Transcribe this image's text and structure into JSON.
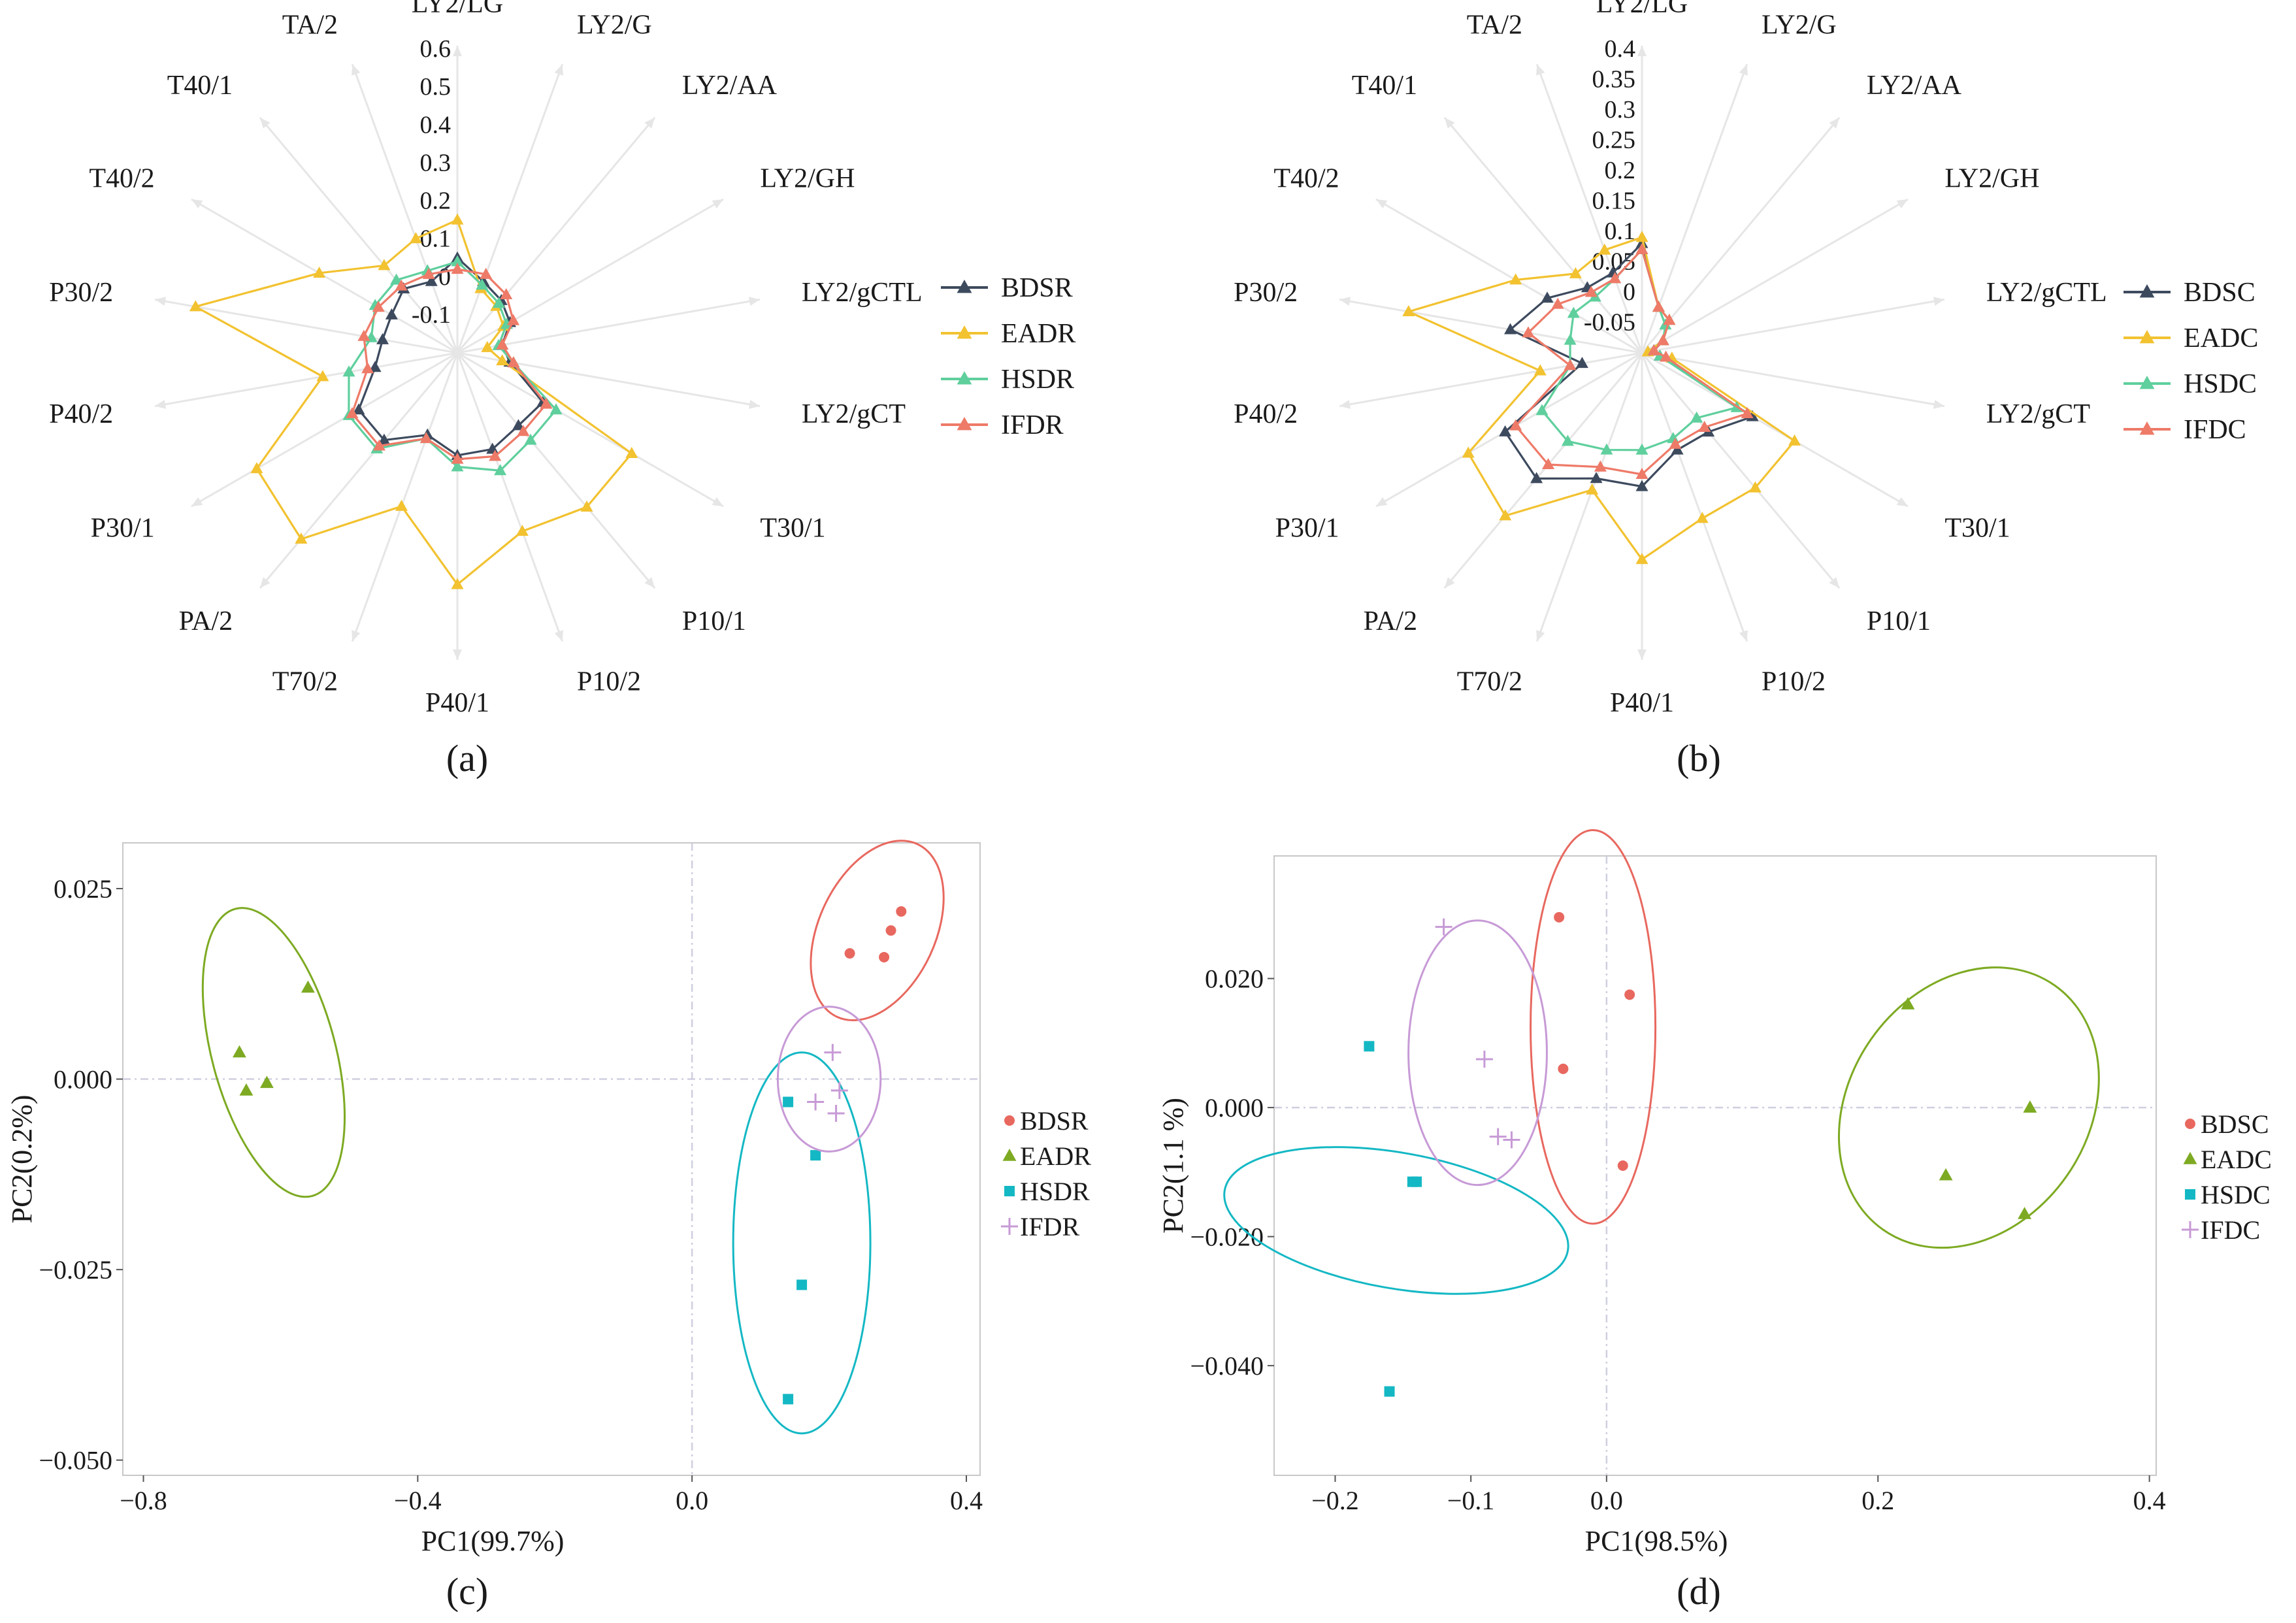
{
  "panel_labels": [
    "(a)",
    "(b)",
    "(c)",
    "(d)"
  ],
  "colors": {
    "BDS": "#3d4a5e",
    "EAD": "#f2c230",
    "HSD": "#5fcf9d",
    "IFD": "#ee7a68",
    "pca_bds": "#e8685f",
    "pca_ead": "#7daa22",
    "pca_hsd": "#14b8c4",
    "pca_ifd": "#c79ad6",
    "spoke": "#e6e6e6",
    "refline": "#cfcfe0",
    "frame": "#c8c8c8"
  },
  "chart_data": [
    {
      "type": "radar",
      "panel": "(a)",
      "axes": [
        "LY2/LG",
        "LY2/G",
        "LY2/AA",
        "LY2/GH",
        "LY2/gCTL",
        "LY2/gCT",
        "T30/1",
        "P10/1",
        "P10/2",
        "P40/1",
        "T70/2",
        "PA/2",
        "P30/1",
        "P40/2",
        "P30/2",
        "T40/2",
        "T40/1",
        "TA/2"
      ],
      "ticks": [
        "0.6",
        "0.5",
        "0.4",
        "0.3",
        "0.2",
        "0.1",
        "0",
        "-0.1"
      ],
      "tick_values": [
        0.6,
        0.5,
        0.4,
        0.3,
        0.2,
        0.1,
        0,
        -0.1
      ],
      "rmin": -0.2,
      "rmax": 0.6,
      "legend": [
        "BDSR",
        "EADR",
        "HSDR",
        "IFDR"
      ],
      "series": [
        {
          "name": "BDSR",
          "values": [
            0.05,
            0.0,
            -0.02,
            -0.04,
            -0.08,
            -0.06,
            0.06,
            0.05,
            0.07,
            0.07,
            0.03,
            0.1,
            0.1,
            0.02,
            0.0,
            0.0,
            0.02,
            0.0
          ]
        },
        {
          "name": "EADR",
          "values": [
            0.15,
            -0.02,
            -0.04,
            -0.06,
            -0.12,
            -0.08,
            0.33,
            0.33,
            0.3,
            0.41,
            0.23,
            0.44,
            0.41,
            0.16,
            0.5,
            0.22,
            0.1,
            0.12
          ]
        },
        {
          "name": "HSDR",
          "values": [
            0.04,
            -0.01,
            -0.03,
            -0.05,
            -0.09,
            -0.05,
            0.1,
            0.1,
            0.13,
            0.1,
            0.04,
            0.13,
            0.13,
            0.09,
            0.03,
            0.05,
            0.05,
            0.03
          ]
        },
        {
          "name": "IFDR",
          "values": [
            0.02,
            0.02,
            0.0,
            -0.03,
            -0.08,
            -0.05,
            0.07,
            0.07,
            0.09,
            0.08,
            0.04,
            0.12,
            0.12,
            0.04,
            0.05,
            0.04,
            0.03,
            0.02
          ]
        }
      ]
    },
    {
      "type": "radar",
      "panel": "(b)",
      "axes": [
        "LY2/LG",
        "LY2/G",
        "LY2/AA",
        "LY2/GH",
        "LY2/gCTL",
        "LY2/gCT",
        "T30/1",
        "P10/1",
        "P10/2",
        "P40/1",
        "T70/2",
        "PA/2",
        "P30/1",
        "P40/2",
        "P30/2",
        "T40/2",
        "T40/1",
        "TA/2"
      ],
      "ticks": [
        "0.4",
        "0.35",
        "0.3",
        "0.25",
        "0.2",
        "0.15",
        "0.1",
        "0.05",
        "0",
        "-0.05"
      ],
      "tick_values": [
        0.4,
        0.35,
        0.3,
        0.25,
        0.2,
        0.15,
        0.1,
        0.05,
        0,
        -0.05
      ],
      "rmin": -0.1,
      "rmax": 0.4,
      "legend": [
        "BDSC",
        "EADC",
        "HSDC",
        "IFDC"
      ],
      "series": [
        {
          "name": "BDSC",
          "values": [
            0.08,
            -0.02,
            -0.03,
            -0.06,
            -0.08,
            -0.07,
            0.11,
            0.07,
            0.07,
            0.12,
            0.12,
            0.17,
            0.16,
            0.0,
            0.12,
            0.08,
            0.04,
            0.04
          ]
        },
        {
          "name": "EADC",
          "values": [
            0.09,
            -0.02,
            -0.03,
            -0.06,
            -0.09,
            -0.05,
            0.19,
            0.19,
            0.19,
            0.24,
            0.14,
            0.25,
            0.23,
            0.07,
            0.29,
            0.14,
            0.07,
            0.08
          ]
        },
        {
          "name": "HSDC",
          "values": [
            0.07,
            -0.02,
            -0.04,
            -0.06,
            -0.08,
            -0.07,
            0.08,
            0.04,
            0.05,
            0.06,
            0.07,
            0.09,
            0.09,
            0.02,
            0.02,
            0.03,
            0.02,
            0.03
          ]
        },
        {
          "name": "IFDC",
          "values": [
            0.07,
            -0.02,
            -0.03,
            -0.06,
            -0.08,
            -0.06,
            0.1,
            0.06,
            0.06,
            0.1,
            0.1,
            0.14,
            0.14,
            0.02,
            0.09,
            0.06,
            0.03,
            0.03
          ]
        }
      ]
    },
    {
      "type": "scatter",
      "panel": "(c)",
      "xlabel": "PC1(99.7%)",
      "ylabel": "PC2(0.2%)",
      "xlim": [
        -0.83,
        0.42
      ],
      "ylim": [
        -0.052,
        0.031
      ],
      "xticks": [
        -0.8,
        -0.4,
        0.0,
        0.4
      ],
      "xtick_labels": [
        "−0.8",
        "−0.4",
        "0.0",
        "0.4"
      ],
      "yticks": [
        0.025,
        0.0,
        -0.025,
        -0.05
      ],
      "ytick_labels": [
        "0.025",
        "0.000",
        "−0.025",
        "−0.050"
      ],
      "series": [
        {
          "name": "BDSR",
          "marker": "circle",
          "points": [
            [
              0.23,
              0.0165
            ],
            [
              0.28,
              0.016
            ],
            [
              0.29,
              0.0195
            ],
            [
              0.305,
              0.022
            ]
          ],
          "ellipse": {
            "cx": 0.27,
            "cy": 0.0195,
            "rx": 0.085,
            "ry": 0.0125,
            "angle_deg": 25
          }
        },
        {
          "name": "EADR",
          "marker": "triangle",
          "points": [
            [
              -0.56,
              0.012
            ],
            [
              -0.66,
              0.0035
            ],
            [
              -0.65,
              -0.0015
            ],
            [
              -0.62,
              -0.0005
            ]
          ],
          "ellipse": {
            "cx": -0.61,
            "cy": 0.0035,
            "rx": 0.09,
            "ry": 0.0195,
            "angle_deg": -15
          }
        },
        {
          "name": "HSDR",
          "marker": "square",
          "points": [
            [
              0.14,
              -0.003
            ],
            [
              0.18,
              -0.01
            ],
            [
              0.16,
              -0.027
            ],
            [
              0.14,
              -0.042
            ]
          ],
          "ellipse": {
            "cx": 0.16,
            "cy": -0.0215,
            "rx": 0.1,
            "ry": 0.025,
            "angle_deg": 0
          }
        },
        {
          "name": "IFDR",
          "marker": "plus",
          "points": [
            [
              0.205,
              0.0035
            ],
            [
              0.215,
              -0.0015
            ],
            [
              0.18,
              -0.003
            ],
            [
              0.21,
              -0.0045
            ]
          ],
          "ellipse": {
            "cx": 0.2,
            "cy": 0.0,
            "rx": 0.075,
            "ry": 0.0095,
            "angle_deg": 0
          }
        }
      ]
    },
    {
      "type": "scatter",
      "panel": "(d)",
      "xlabel": "PC1(98.5%)",
      "ylabel": "PC2(1.1 %)",
      "xlim": [
        -0.245,
        0.405
      ],
      "ylim": [
        -0.057,
        0.039
      ],
      "xticks": [
        -0.2,
        -0.1,
        0.0,
        0.2,
        0.4
      ],
      "xtick_labels": [
        "−0.2",
        "−0.1",
        "0.0",
        "0.2",
        "0.4"
      ],
      "yticks": [
        0.02,
        0.0,
        -0.02,
        -0.04
      ],
      "ytick_labels": [
        "0.020",
        "0.000",
        "−0.020",
        "−0.040"
      ],
      "series": [
        {
          "name": "BDSC",
          "marker": "circle",
          "points": [
            [
              -0.035,
              0.0295
            ],
            [
              0.017,
              0.0175
            ],
            [
              -0.032,
              0.006
            ],
            [
              0.012,
              -0.009
            ]
          ],
          "ellipse": {
            "cx": -0.01,
            "cy": 0.0125,
            "rx": 0.046,
            "ry": 0.0305,
            "angle_deg": 0
          }
        },
        {
          "name": "EADC",
          "marker": "triangle",
          "points": [
            [
              0.222,
              0.016
            ],
            [
              0.312,
              0.0
            ],
            [
              0.25,
              -0.0105
            ],
            [
              0.308,
              -0.0165
            ]
          ],
          "ellipse": {
            "cx": 0.267,
            "cy": 0.0,
            "rx": 0.11,
            "ry": 0.0185,
            "angle_deg": -55
          }
        },
        {
          "name": "HSDC",
          "marker": "square",
          "points": [
            [
              -0.175,
              0.0095
            ],
            [
              -0.143,
              -0.0115
            ],
            [
              -0.14,
              -0.0115
            ],
            [
              -0.16,
              -0.044
            ]
          ],
          "ellipse": {
            "cx": -0.155,
            "cy": -0.0175,
            "rx": 0.05,
            "ry": 0.027,
            "angle_deg": -80
          }
        },
        {
          "name": "IFDC",
          "marker": "plus",
          "points": [
            [
              -0.12,
              0.028
            ],
            [
              -0.09,
              0.0075
            ],
            [
              -0.08,
              -0.0045
            ],
            [
              -0.07,
              -0.005
            ]
          ],
          "ellipse": {
            "cx": -0.095,
            "cy": 0.0085,
            "rx": 0.051,
            "ry": 0.0205,
            "angle_deg": 0
          }
        }
      ]
    }
  ]
}
